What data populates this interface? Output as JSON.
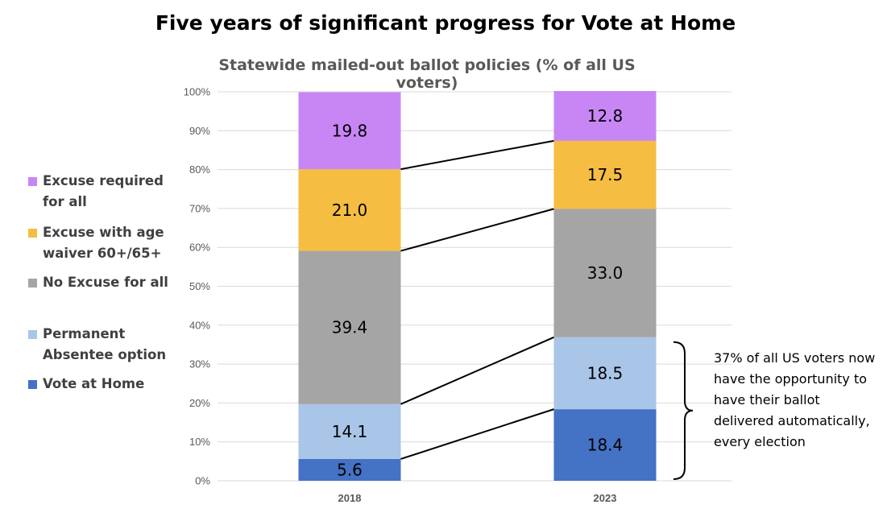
{
  "chart_data": {
    "type": "bar",
    "stacked": true,
    "title": "Five years of significant progress for Vote at Home",
    "subtitle": "Statewide mailed-out ballot policies (% of all US voters)",
    "categories": [
      "2018",
      "2023"
    ],
    "ylim": [
      0,
      100
    ],
    "yticks": [
      "0%",
      "10%",
      "20%",
      "30%",
      "40%",
      "50%",
      "60%",
      "70%",
      "80%",
      "90%",
      "100%"
    ],
    "grid": true,
    "legend_position": "left",
    "series": [
      {
        "name": "Vote at Home",
        "color": "#4472C4",
        "values": [
          5.6,
          18.4
        ],
        "labels": [
          "5.6",
          "18.4"
        ]
      },
      {
        "name": "Permanent Absentee option",
        "color": "#A9C5E8",
        "values": [
          14.1,
          18.5
        ],
        "labels": [
          "14.1",
          "18.5"
        ]
      },
      {
        "name": "No Excuse for all",
        "color": "#A5A5A5",
        "values": [
          39.4,
          33.0
        ],
        "labels": [
          "39.4",
          "33.0"
        ]
      },
      {
        "name": "Excuse with age waiver 60+/65+",
        "color": "#F5BD41",
        "values": [
          21.0,
          17.5
        ],
        "labels": [
          "21.0",
          "17.5"
        ]
      },
      {
        "name": "Excuse required for all",
        "color": "#C886F5",
        "values": [
          19.8,
          12.8
        ],
        "labels": [
          "19.8",
          "12.8"
        ]
      }
    ],
    "annotation": "37% of all US voters now have the opportunity to have their ballot delivered automatically, every election"
  },
  "legend": [
    {
      "label": "Excuse required\nfor all",
      "color": "#C886F5"
    },
    {
      "label": "Excuse with age\nwaiver 60+/65+",
      "color": "#F5BD41"
    },
    {
      "label": "No Excuse for all",
      "color": "#A5A5A5"
    },
    {
      "label": "Permanent\nAbsentee option",
      "color": "#A9C5E8"
    },
    {
      "label": "Vote at Home",
      "color": "#4472C4"
    }
  ]
}
